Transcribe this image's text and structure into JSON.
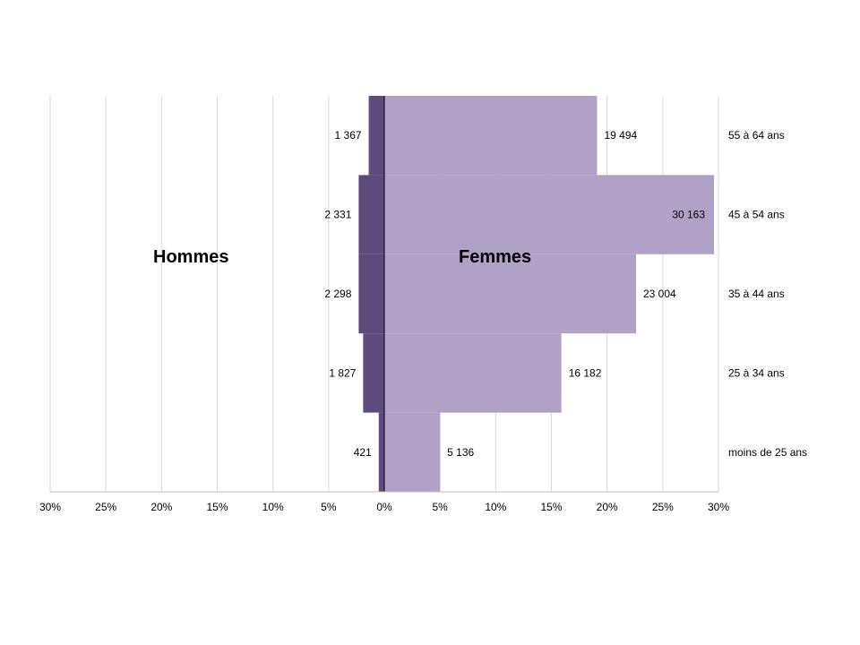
{
  "chart_data": {
    "type": "bar",
    "orientation": "horizontal",
    "subtype": "population-pyramid",
    "categories": [
      "moins de 25 ans",
      "25 à 34 ans",
      "35 à 44 ans",
      "45 à 54 ans",
      "55 à 64 ans"
    ],
    "series": [
      {
        "name": "Hommes",
        "counts": [
          421,
          1827,
          2298,
          2331,
          1367
        ],
        "count_labels": [
          "421",
          "1 827",
          "2 298",
          "2 331",
          "1 367"
        ],
        "percent_values": [
          0.5,
          1.9,
          2.3,
          2.3,
          1.4
        ],
        "color": "#5f4a7e"
      },
      {
        "name": "Femmes",
        "counts": [
          5136,
          16182,
          23004,
          30163,
          19494
        ],
        "count_labels": [
          "5 136",
          "16 182",
          "23 004",
          "30 163",
          "19 494"
        ],
        "percent_values": [
          5.0,
          15.9,
          22.6,
          29.6,
          19.1
        ],
        "color": "#b2a1c7"
      }
    ],
    "x_tick_labels": [
      "30%",
      "25%",
      "20%",
      "15%",
      "10%",
      "5%",
      "0%",
      "5%",
      "10%",
      "15%",
      "20%",
      "25%",
      "30%"
    ],
    "xlim": [
      -30,
      30
    ],
    "x_unit": "%",
    "grid": true,
    "legend": "none"
  }
}
